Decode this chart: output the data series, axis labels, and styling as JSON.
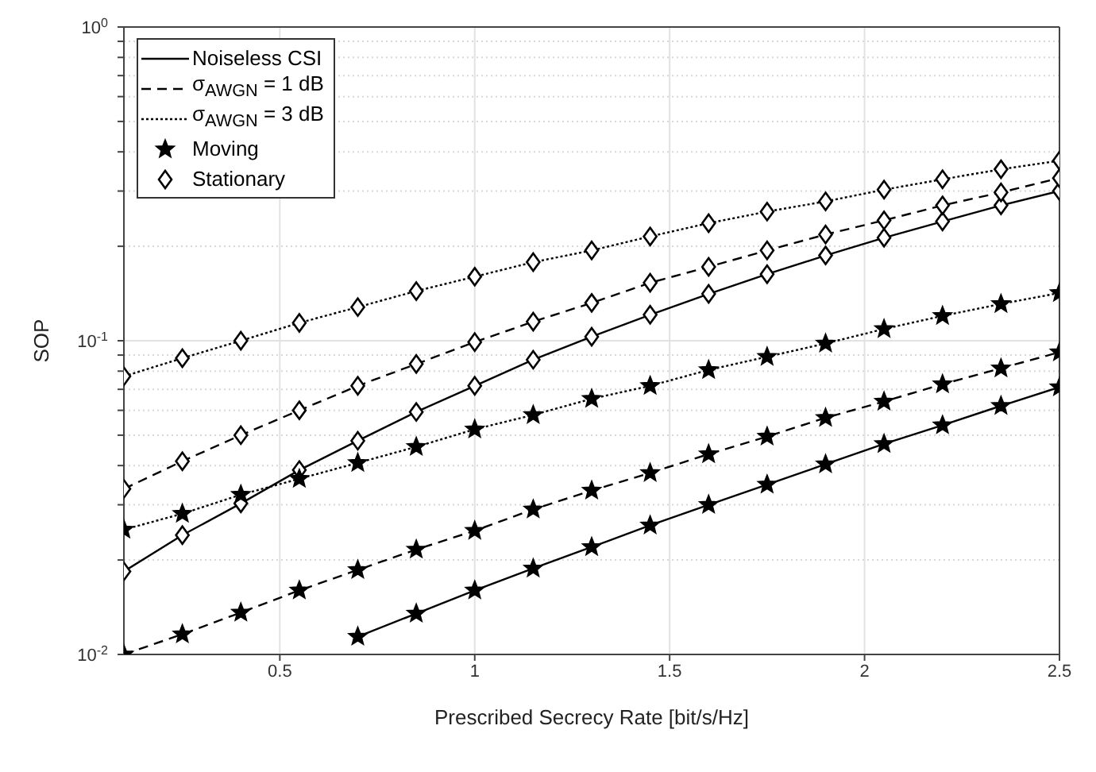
{
  "chart_data": {
    "type": "line",
    "xlabel": "Prescribed Secrecy Rate [bit/s/Hz]",
    "ylabel": "SOP",
    "log": "y",
    "grid": true,
    "legend": "top left",
    "x": [
      0.1,
      0.25,
      0.4,
      0.55,
      0.7,
      0.85,
      1.0,
      1.15,
      1.3,
      1.45,
      1.6,
      1.75,
      1.9,
      2.05,
      2.2,
      2.35,
      2.5
    ],
    "xlim": [
      0.1,
      2.5
    ],
    "xticks": [
      0.5,
      1,
      1.5,
      2,
      2.5
    ],
    "ylim": [
      0.01,
      1
    ],
    "yticks": [
      {
        "value": 0.01,
        "label": "10$^{-2}$"
      },
      {
        "value": 0.02,
        "label": null
      },
      {
        "value": 0.03,
        "label": null
      },
      {
        "value": 0.04,
        "label": null
      },
      {
        "value": 0.05,
        "label": null
      },
      {
        "value": 0.06,
        "label": null
      },
      {
        "value": 0.07,
        "label": null
      },
      {
        "value": 0.08,
        "label": null
      },
      {
        "value": 0.09,
        "label": null
      },
      {
        "value": 0.1,
        "label": "10$^{-1}$"
      },
      {
        "value": 0.2,
        "label": null
      },
      {
        "value": 0.3,
        "label": null
      },
      {
        "value": 0.4,
        "label": null
      },
      {
        "value": 0.5,
        "label": null
      },
      {
        "value": 0.6,
        "label": null
      },
      {
        "value": 0.7,
        "label": null
      },
      {
        "value": 0.8,
        "label": null
      },
      {
        "value": 0.9,
        "label": null
      },
      {
        "value": 1,
        "label": "10$^{0}$"
      }
    ],
    "series": [
      {
        "color": "#000000",
        "line_style": "solid",
        "marker": "diamond",
        "values": [
          0.0184,
          0.024,
          0.0303,
          0.0387,
          0.048,
          0.0593,
          0.0718,
          0.087,
          0.103,
          0.121,
          0.141,
          0.163,
          0.187,
          0.213,
          0.24,
          0.27,
          0.3
        ]
      },
      {
        "color": "#000000",
        "line_style": "dashed",
        "marker": "diamond",
        "values": [
          0.0337,
          0.0413,
          0.05,
          0.06,
          0.0718,
          0.0843,
          0.099,
          0.115,
          0.132,
          0.153,
          0.172,
          0.194,
          0.218,
          0.242,
          0.27,
          0.297,
          0.33
        ]
      },
      {
        "color": "#000000",
        "line_style": "dotted",
        "marker": "diamond",
        "values": [
          0.077,
          0.088,
          0.1,
          0.114,
          0.128,
          0.144,
          0.16,
          0.178,
          0.194,
          0.215,
          0.237,
          0.258,
          0.278,
          0.303,
          0.327,
          0.352,
          0.375
        ]
      },
      {
        "color": "#000000",
        "line_style": "solid",
        "marker": "star",
        "values": [
          null,
          null,
          null,
          null,
          0.0114,
          0.0135,
          0.016,
          0.0188,
          0.022,
          0.0258,
          0.03,
          0.0348,
          0.0404,
          0.0469,
          0.0538,
          0.062,
          0.0711
        ]
      },
      {
        "color": "#000000",
        "line_style": "dashed",
        "marker": "star",
        "values": [
          0.01,
          0.0116,
          0.0136,
          0.016,
          0.0186,
          0.0216,
          0.0248,
          0.029,
          0.0333,
          0.0379,
          0.0435,
          0.0495,
          0.0568,
          0.064,
          0.0727,
          0.0817,
          0.0919
        ]
      },
      {
        "color": "#000000",
        "line_style": "dotted",
        "marker": "star",
        "values": [
          0.025,
          0.0281,
          0.0323,
          0.0363,
          0.0408,
          0.0459,
          0.0522,
          0.058,
          0.0653,
          0.0718,
          0.0807,
          0.0889,
          0.098,
          0.109,
          0.12,
          0.131,
          0.142
        ]
      },
      {
        "name": "Noiseless CSI",
        "color": "#000000",
        "line_style": "solid",
        "marker": "none",
        "values": [
          null,
          null,
          null,
          null,
          null,
          null,
          null,
          null,
          null,
          null,
          null,
          null,
          null,
          null,
          null,
          null,
          null
        ]
      },
      {
        "name": "σ$_{AWGN}$ = 1 dB",
        "color": "#000000",
        "line_style": "dashed",
        "marker": "none",
        "values": [
          null,
          null,
          null,
          null,
          null,
          null,
          null,
          null,
          null,
          null,
          null,
          null,
          null,
          null,
          null,
          null,
          null
        ]
      },
      {
        "name": "σ$_{AWGN}$ = 3 dB",
        "color": "#000000",
        "line_style": "dotted",
        "marker": "none",
        "values": [
          null,
          null,
          null,
          null,
          null,
          null,
          null,
          null,
          null,
          null,
          null,
          null,
          null,
          null,
          null,
          null,
          null
        ]
      },
      {
        "name": "Moving",
        "color": "#000000",
        "line_style": "none",
        "marker": "star",
        "values": [
          null,
          null,
          null,
          null,
          null,
          null,
          null,
          null,
          null,
          null,
          null,
          null,
          null,
          null,
          null,
          null,
          null
        ]
      },
      {
        "name": "Stationary",
        "color": "#000000",
        "line_style": "none",
        "marker": "diamond",
        "values": [
          null,
          null,
          null,
          null,
          null,
          null,
          null,
          null,
          null,
          null,
          null,
          null,
          null,
          null,
          null,
          null,
          null
        ]
      }
    ]
  }
}
